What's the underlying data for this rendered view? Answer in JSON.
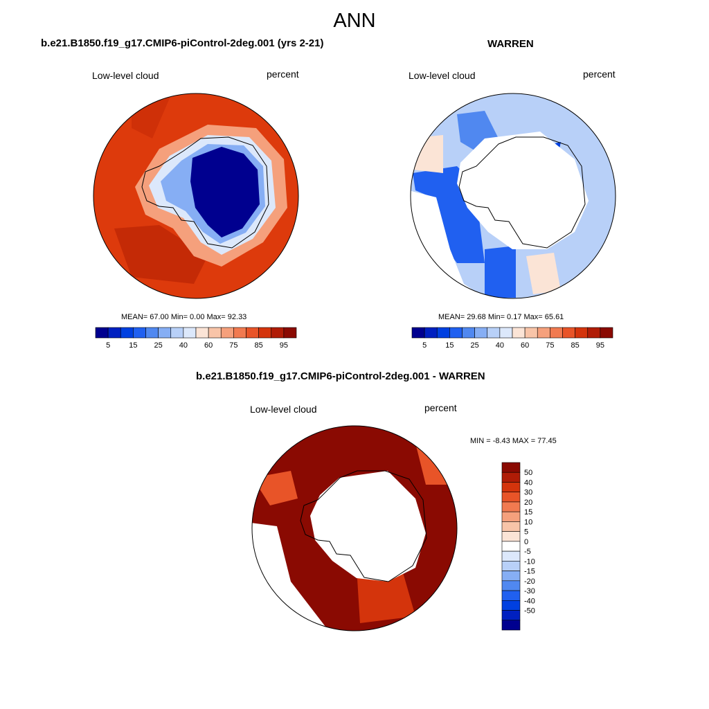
{
  "figure": {
    "season": "ANN",
    "colors": {
      "ocean_fill": "#dd3a0c",
      "ice_fill": "#00008f",
      "land_outline": "#000000"
    }
  },
  "panel_model": {
    "title": "b.e21.B1850.f19_g17.CMIP6-piControl-2deg.001 (yrs 2-21)",
    "variable": "Low-level cloud",
    "units": "percent",
    "stats": "MEAN=  67.00  Min=   0.00  Max=  92.33",
    "colorbar_ticks": [
      "5",
      "15",
      "25",
      "40",
      "60",
      "75",
      "85",
      "95"
    ],
    "colorbar_colors": [
      "#00008f",
      "#0020c0",
      "#0040e0",
      "#2060f0",
      "#5088f0",
      "#86aef4",
      "#b8d0f8",
      "#dce8fb",
      "#fbe4d6",
      "#f8c4a8",
      "#f5a07c",
      "#f17a50",
      "#e85428",
      "#d4340c",
      "#b01c06",
      "#8a0a02"
    ]
  },
  "panel_obs": {
    "title": "WARREN",
    "variable": "Low-level cloud",
    "units": "percent",
    "stats": "MEAN=  29.68  Min=   0.17  Max=  65.61",
    "colorbar_ticks": [
      "5",
      "15",
      "25",
      "40",
      "60",
      "75",
      "85",
      "95"
    ]
  },
  "panel_diff": {
    "title": "b.e21.B1850.f19_g17.CMIP6-piControl-2deg.001 - WARREN",
    "variable": "Low-level cloud",
    "units": "percent",
    "stats": "MIN =  -8.43 MAX =  77.45",
    "colorbar_ticks": [
      "50",
      "40",
      "30",
      "20",
      "15",
      "10",
      "5",
      "0",
      "-5",
      "-10",
      "-15",
      "-20",
      "-30",
      "-40",
      "-50"
    ],
    "colorbar_colors": [
      "#8a0a02",
      "#b01c06",
      "#d4340c",
      "#e85428",
      "#f17a50",
      "#f5a07c",
      "#f8c4a8",
      "#fbe4d6",
      "#ffffff",
      "#dce8fb",
      "#b8d0f8",
      "#86aef4",
      "#5088f0",
      "#2060f0",
      "#0040e0",
      "#0020c0",
      "#00008f"
    ]
  }
}
